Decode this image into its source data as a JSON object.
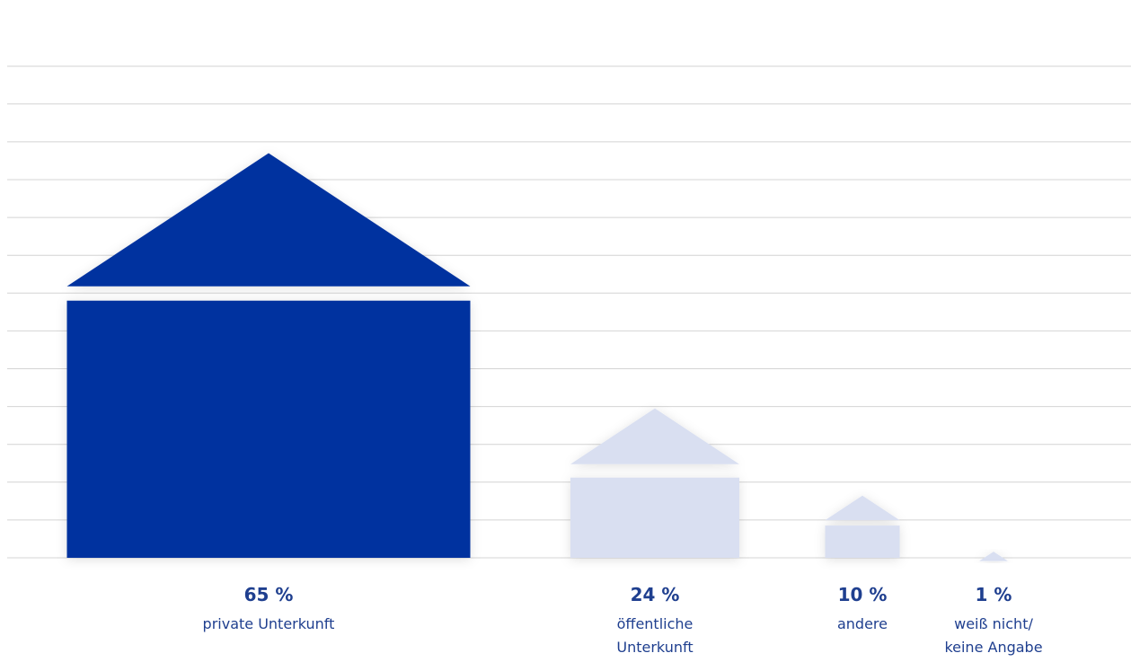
{
  "chart_data": {
    "type": "bar",
    "style": "house-shaped bars",
    "categories": [
      [
        "private Unterkunft"
      ],
      [
        "öffentliche",
        "Unterkunft"
      ],
      [
        "andere"
      ],
      [
        "weiß nicht/",
        "keine Angabe"
      ]
    ],
    "values": [
      65,
      24,
      10,
      1
    ],
    "value_labels": [
      "65 %",
      "24 %",
      "10 %",
      "1 %"
    ],
    "title": "",
    "xlabel": "",
    "ylabel": "",
    "ylim": [
      0,
      80
    ],
    "grid": true,
    "legend": "none",
    "colors": {
      "highlight": "#00339f",
      "muted": "#d9dff1",
      "gridline": "#d4d4d4",
      "text": "#1f3f8f"
    },
    "highlight_index": 0
  }
}
